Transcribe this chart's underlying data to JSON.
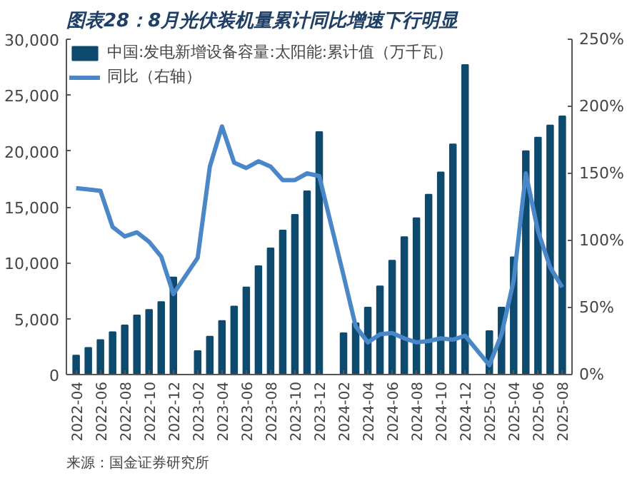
{
  "chart_data": {
    "type": "bar",
    "title": "图表28：8月光伏装机量累计同比增速下行明显",
    "categories": [
      "2022-04",
      null,
      "2022-06",
      null,
      "2022-08",
      null,
      "2022-10",
      null,
      "2022-12",
      null,
      "2023-02",
      null,
      "2023-04",
      null,
      "2023-06",
      null,
      "2023-08",
      null,
      "2023-10",
      null,
      "2023-12",
      null,
      "2024-02",
      null,
      "2024-04",
      null,
      "2024-06",
      null,
      "2024-08",
      null,
      "2024-10",
      null,
      "2024-12",
      null,
      "2025-02",
      null,
      "2025-04",
      null,
      "2025-06",
      null,
      "2025-08"
    ],
    "series": [
      {
        "name": "中国:发电新增设备容量:太阳能:累计值（万千瓦）",
        "color": "#0d4a6e",
        "values": [
          1700,
          2400,
          3100,
          3800,
          4400,
          5300,
          5800,
          6500,
          8700,
          null,
          2100,
          3400,
          4800,
          6100,
          7800,
          9700,
          11300,
          12900,
          14300,
          16400,
          21700,
          null,
          3700,
          4600,
          6000,
          7900,
          10200,
          12300,
          14000,
          16100,
          18100,
          20600,
          27700,
          null,
          3900,
          6000,
          10500,
          20000,
          21200,
          22300,
          23100
        ]
      },
      {
        "name": "同比（右轴）",
        "type": "line",
        "axis": "y2",
        "color": "#4a87c9",
        "values": [
          139,
          138,
          137,
          110,
          103,
          106,
          99,
          88,
          60,
          null,
          87,
          155,
          185,
          158,
          154,
          159,
          155,
          145,
          145,
          150,
          148,
          null,
          74,
          36,
          24,
          30,
          31,
          27,
          24,
          25,
          27,
          26,
          29,
          null,
          7,
          30,
          70,
          150,
          107,
          80,
          65
        ]
      }
    ],
    "ylim": [
      0,
      30000
    ],
    "yticks": [
      {
        "value": 0,
        "label": "0"
      },
      {
        "value": 5000,
        "label": "5,000"
      },
      {
        "value": 10000,
        "label": "10,000"
      },
      {
        "value": 15000,
        "label": "15,000"
      },
      {
        "value": 20000,
        "label": "20,000"
      },
      {
        "value": 25000,
        "label": "25,000"
      },
      {
        "value": 30000,
        "label": "30,000"
      }
    ],
    "y2lim": [
      0,
      250
    ],
    "y2ticks": [
      {
        "value": 0,
        "label": "0%"
      },
      {
        "value": 50,
        "label": "50%"
      },
      {
        "value": 100,
        "label": "100%"
      },
      {
        "value": 150,
        "label": "150%"
      },
      {
        "value": 200,
        "label": "200%"
      },
      {
        "value": 250,
        "label": "250%"
      }
    ],
    "legend": "top left",
    "grid": false,
    "annotations": [
      "来源：国金证券研究所"
    ]
  }
}
